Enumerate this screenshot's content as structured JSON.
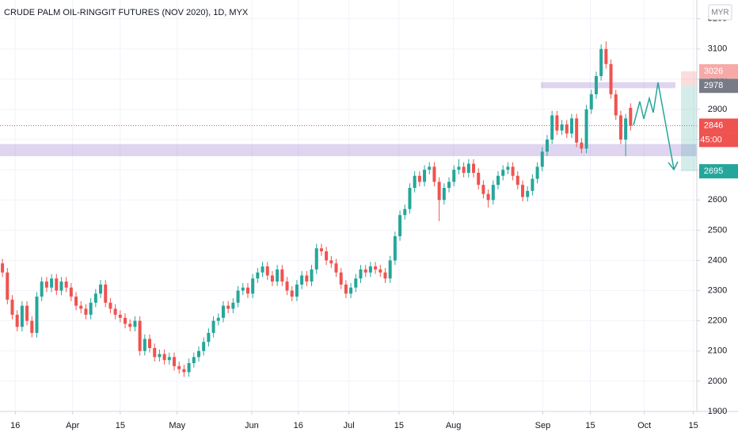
{
  "chart_data": {
    "type": "candlestick",
    "title": "CRUDE PALM OIL-RINGGIT FUTURES (NOV 2020), 1D, MYX",
    "currency": "MYR",
    "countdown": "45:00",
    "up_color": "#26a69a",
    "down_color": "#ef5350",
    "grid": true,
    "ylim": [
      1900,
      3262
    ],
    "yticks": [
      1900,
      2000,
      2100,
      2200,
      2300,
      2400,
      2500,
      2600,
      2700,
      2800,
      2900,
      3000,
      3100,
      3200
    ],
    "xlim": [
      -0.5,
      141.5
    ],
    "xticks": [
      {
        "value": 2.6,
        "label": "16"
      },
      {
        "value": 14.3,
        "label": "Apr"
      },
      {
        "value": 24,
        "label": "15"
      },
      {
        "value": 35.6,
        "label": "May"
      },
      {
        "value": 50.8,
        "label": "Jun"
      },
      {
        "value": 60.3,
        "label": "16"
      },
      {
        "value": 70.6,
        "label": "Jul"
      },
      {
        "value": 80.8,
        "label": "15"
      },
      {
        "value": 91.9,
        "label": "Aug"
      },
      {
        "value": 110.1,
        "label": "Sep"
      },
      {
        "value": 119.8,
        "label": "15"
      },
      {
        "value": 130.8,
        "label": "Oct"
      },
      {
        "value": 140.8,
        "label": "15"
      }
    ],
    "open": [
      2390,
      2360,
      2270,
      2220,
      2180,
      2250,
      2200,
      2160,
      2280,
      2330,
      2310,
      2340,
      2300,
      2330,
      2310,
      2280,
      2250,
      2240,
      2220,
      2260,
      2290,
      2320,
      2260,
      2240,
      2220,
      2210,
      2190,
      2180,
      2200,
      2100,
      2140,
      2110,
      2080,
      2090,
      2070,
      2080,
      2050,
      2040,
      2030,
      2060,
      2080,
      2100,
      2130,
      2160,
      2200,
      2210,
      2250,
      2240,
      2260,
      2300,
      2310,
      2290,
      2340,
      2360,
      2380,
      2350,
      2330,
      2370,
      2330,
      2300,
      2280,
      2320,
      2350,
      2330,
      2370,
      2440,
      2430,
      2400,
      2390,
      2360,
      2320,
      2290,
      2310,
      2340,
      2370,
      2360,
      2380,
      2370,
      2360,
      2340,
      2400,
      2480,
      2550,
      2570,
      2640,
      2680,
      2660,
      2700,
      2710,
      2660,
      2600,
      2640,
      2660,
      2700,
      2710,
      2690,
      2720,
      2690,
      2650,
      2620,
      2600,
      2650,
      2680,
      2700,
      2710,
      2680,
      2650,
      2610,
      2630,
      2670,
      2710,
      2760,
      2800,
      2880,
      2830,
      2850,
      2820,
      2870,
      2790,
      2770,
      2900,
      2950,
      3010,
      3100,
      3050,
      2950,
      2880,
      2800,
      2905
    ],
    "high": [
      2405,
      2375,
      2285,
      2235,
      2265,
      2265,
      2215,
      2295,
      2345,
      2345,
      2355,
      2355,
      2345,
      2345,
      2325,
      2295,
      2265,
      2255,
      2275,
      2305,
      2335,
      2335,
      2275,
      2255,
      2235,
      2225,
      2205,
      2215,
      2215,
      2155,
      2155,
      2125,
      2105,
      2105,
      2095,
      2095,
      2065,
      2055,
      2075,
      2095,
      2115,
      2145,
      2175,
      2215,
      2225,
      2265,
      2265,
      2275,
      2315,
      2325,
      2325,
      2355,
      2375,
      2395,
      2395,
      2365,
      2385,
      2385,
      2345,
      2315,
      2335,
      2365,
      2365,
      2385,
      2455,
      2455,
      2445,
      2415,
      2405,
      2375,
      2335,
      2325,
      2355,
      2385,
      2385,
      2395,
      2395,
      2385,
      2375,
      2415,
      2495,
      2565,
      2585,
      2655,
      2695,
      2695,
      2715,
      2725,
      2725,
      2675,
      2655,
      2675,
      2715,
      2735,
      2725,
      2735,
      2735,
      2705,
      2665,
      2635,
      2665,
      2695,
      2715,
      2725,
      2725,
      2695,
      2665,
      2645,
      2685,
      2725,
      2775,
      2815,
      2895,
      2895,
      2865,
      2865,
      2885,
      2885,
      2805,
      2915,
      2965,
      3025,
      3115,
      3125,
      3065,
      2965,
      2895,
      2885,
      2920
    ],
    "low": [
      2345,
      2255,
      2205,
      2165,
      2165,
      2185,
      2145,
      2145,
      2265,
      2295,
      2295,
      2285,
      2285,
      2295,
      2265,
      2235,
      2225,
      2205,
      2205,
      2245,
      2275,
      2245,
      2225,
      2205,
      2195,
      2175,
      2165,
      2165,
      2085,
      2085,
      2095,
      2065,
      2065,
      2055,
      2055,
      2035,
      2025,
      2015,
      2015,
      2045,
      2065,
      2085,
      2115,
      2145,
      2185,
      2195,
      2225,
      2225,
      2245,
      2285,
      2275,
      2275,
      2325,
      2345,
      2335,
      2315,
      2315,
      2315,
      2285,
      2265,
      2265,
      2305,
      2315,
      2315,
      2355,
      2415,
      2385,
      2375,
      2345,
      2305,
      2275,
      2275,
      2295,
      2325,
      2345,
      2345,
      2355,
      2345,
      2325,
      2325,
      2385,
      2465,
      2535,
      2555,
      2625,
      2645,
      2645,
      2685,
      2645,
      2530,
      2585,
      2625,
      2645,
      2685,
      2675,
      2675,
      2675,
      2635,
      2605,
      2575,
      2585,
      2635,
      2665,
      2685,
      2665,
      2635,
      2595,
      2595,
      2615,
      2655,
      2695,
      2745,
      2785,
      2815,
      2815,
      2805,
      2805,
      2775,
      2755,
      2755,
      2885,
      2935,
      2995,
      3035,
      2935,
      2865,
      2785,
      2745,
      2830
    ],
    "close": [
      2360,
      2270,
      2220,
      2180,
      2250,
      2200,
      2160,
      2280,
      2330,
      2310,
      2340,
      2300,
      2330,
      2310,
      2280,
      2250,
      2240,
      2220,
      2260,
      2290,
      2320,
      2260,
      2240,
      2220,
      2210,
      2190,
      2180,
      2200,
      2100,
      2140,
      2110,
      2080,
      2090,
      2070,
      2080,
      2050,
      2040,
      2030,
      2060,
      2080,
      2100,
      2130,
      2160,
      2200,
      2210,
      2250,
      2240,
      2260,
      2300,
      2310,
      2290,
      2340,
      2360,
      2380,
      2350,
      2330,
      2370,
      2330,
      2300,
      2280,
      2320,
      2350,
      2330,
      2370,
      2440,
      2430,
      2400,
      2390,
      2360,
      2320,
      2290,
      2310,
      2340,
      2370,
      2360,
      2380,
      2370,
      2360,
      2340,
      2400,
      2480,
      2550,
      2570,
      2640,
      2680,
      2660,
      2700,
      2710,
      2660,
      2600,
      2640,
      2660,
      2700,
      2710,
      2690,
      2720,
      2690,
      2650,
      2620,
      2600,
      2650,
      2680,
      2700,
      2710,
      2680,
      2650,
      2610,
      2630,
      2670,
      2710,
      2760,
      2800,
      2880,
      2830,
      2850,
      2820,
      2870,
      2790,
      2770,
      2900,
      2950,
      3010,
      3100,
      3050,
      2950,
      2880,
      2800,
      2870,
      2846
    ],
    "zones": [
      {
        "low": 2970,
        "high": 2990
      },
      {
        "low": 2745,
        "high": 2785
      }
    ],
    "zone_color": "rgba(149,117,205,0.3)",
    "badges": [
      {
        "value": 3026,
        "color": "#f7a9a8"
      },
      {
        "value": 2978,
        "color": "#787b86"
      },
      {
        "value": 2846,
        "color": "#ef5350"
      },
      {
        "value": 2695,
        "color": "#26a69a"
      }
    ]
  }
}
